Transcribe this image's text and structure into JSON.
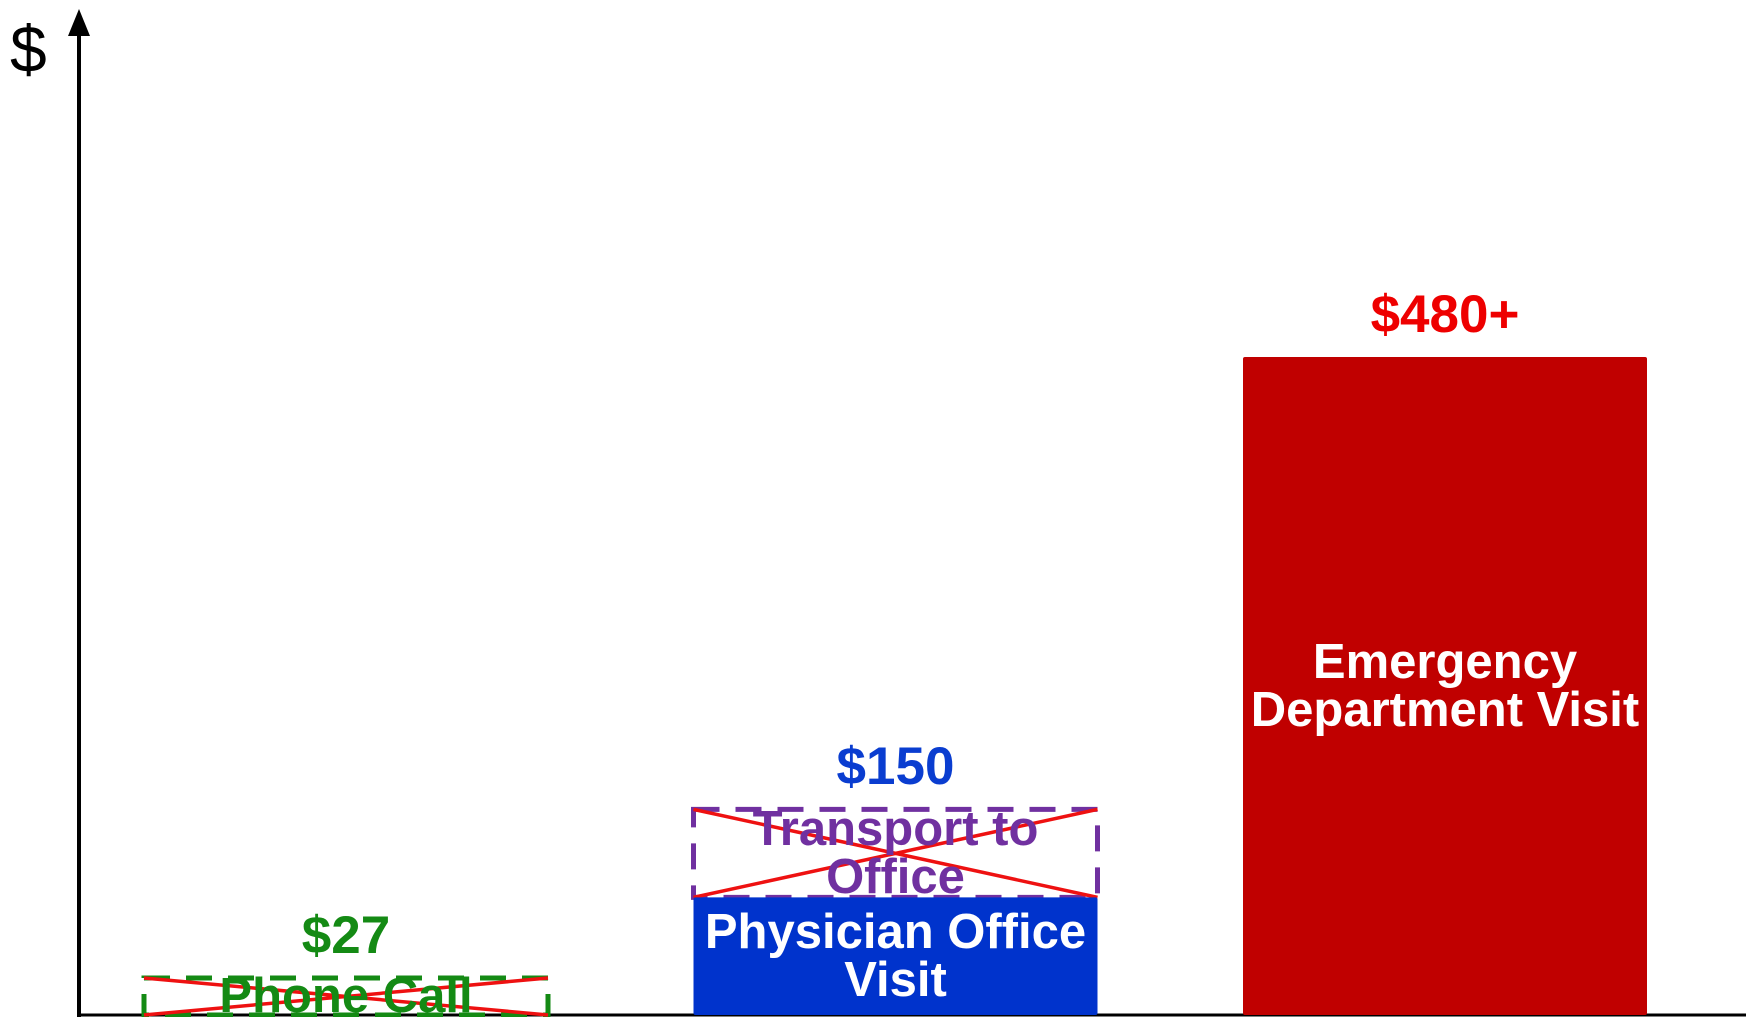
{
  "chart_data": {
    "type": "bar",
    "y_label": "$",
    "categories": [
      "Phone Call",
      "Physician Office Visit",
      "Emergency Department Visit"
    ],
    "values": [
      27,
      150,
      480
    ],
    "value_labels": [
      "$27",
      "$150",
      "$480+"
    ],
    "colors": [
      "#148a14",
      "#0033cc",
      "#c00000"
    ],
    "label_colors": [
      "#148a14",
      "#ffffff",
      "#ffffff"
    ],
    "value_label_colors": [
      "#148a14",
      "#0a3dd0",
      "#ee0000"
    ],
    "crossed_out": [
      true,
      false,
      false
    ],
    "annotations": [
      {
        "text": "Transport to Office",
        "bar": "Physician Office Visit",
        "color": "#7030a0",
        "crossed_out": true
      }
    ],
    "cross_color": "#ee1111"
  }
}
